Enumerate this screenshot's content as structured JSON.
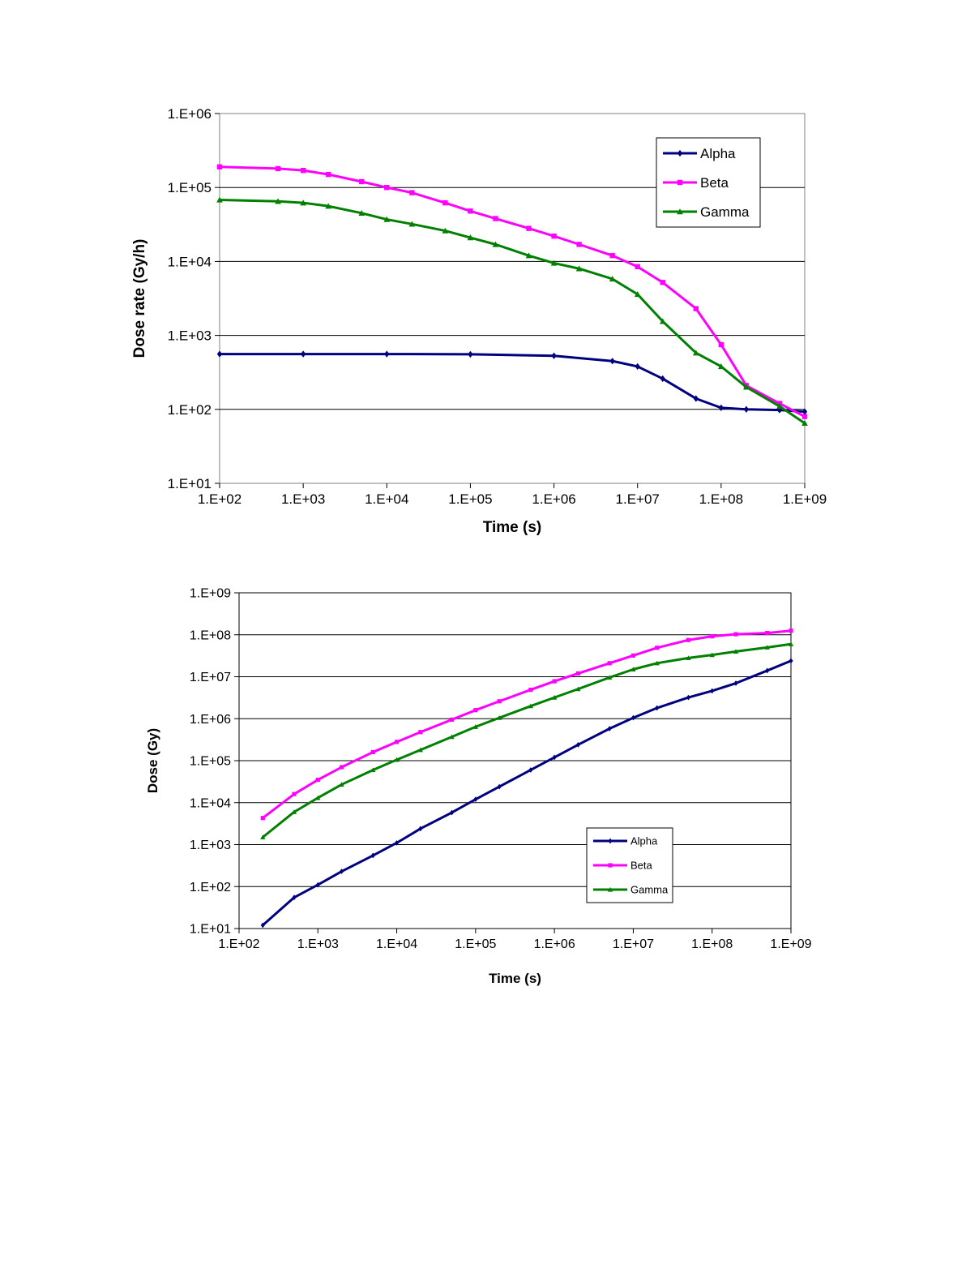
{
  "chart_data": [
    {
      "type": "line",
      "xscale": "log",
      "yscale": "log",
      "xlabel": "Time (s)",
      "ylabel": "Dose rate (Gy/h)",
      "xlim": [
        100,
        1000000000
      ],
      "ylim": [
        10,
        1000000
      ],
      "xticks": [
        "1.E+02",
        "1.E+03",
        "1.E+04",
        "1.E+05",
        "1.E+06",
        "1.E+07",
        "1.E+08",
        "1.E+09"
      ],
      "yticks": [
        "1.E+01",
        "1.E+02",
        "1.E+03",
        "1.E+04",
        "1.E+05",
        "1.E+06"
      ],
      "grid": "horizontal",
      "legend": "top-right",
      "series": [
        {
          "name": "Alpha",
          "color": "#000080",
          "marker": "diamond",
          "points": [
            [
              100,
              560
            ],
            [
              1000,
              560
            ],
            [
              10000,
              560
            ],
            [
              100000,
              555
            ],
            [
              1000000,
              530
            ],
            [
              5000000,
              450
            ],
            [
              10000000,
              380
            ],
            [
              20000000,
              260
            ],
            [
              50000000,
              140
            ],
            [
              100000000,
              105
            ],
            [
              200000000,
              100
            ],
            [
              500000000,
              98
            ],
            [
              1000000000,
              93
            ]
          ]
        },
        {
          "name": "Beta",
          "color": "#ff00ff",
          "marker": "square",
          "points": [
            [
              100,
              190000
            ],
            [
              500,
              180000
            ],
            [
              1000,
              170000
            ],
            [
              2000,
              150000
            ],
            [
              5000,
              120000
            ],
            [
              10000,
              100000
            ],
            [
              20000,
              85000
            ],
            [
              50000,
              62000
            ],
            [
              100000,
              48000
            ],
            [
              200000,
              38000
            ],
            [
              500000,
              28000
            ],
            [
              1000000,
              22000
            ],
            [
              2000000,
              17000
            ],
            [
              5000000,
              12000
            ],
            [
              10000000,
              8500
            ],
            [
              20000000,
              5200
            ],
            [
              50000000,
              2300
            ],
            [
              100000000,
              750
            ],
            [
              200000000,
              210
            ],
            [
              500000000,
              120
            ],
            [
              1000000000,
              80
            ]
          ]
        },
        {
          "name": "Gamma",
          "color": "#008000",
          "marker": "triangle",
          "points": [
            [
              100,
              68000
            ],
            [
              500,
              65000
            ],
            [
              1000,
              62000
            ],
            [
              2000,
              56000
            ],
            [
              5000,
              45000
            ],
            [
              10000,
              37000
            ],
            [
              20000,
              32000
            ],
            [
              50000,
              26000
            ],
            [
              100000,
              21000
            ],
            [
              200000,
              17000
            ],
            [
              500000,
              12000
            ],
            [
              1000000,
              9500
            ],
            [
              2000000,
              8000
            ],
            [
              5000000,
              5800
            ],
            [
              10000000,
              3600
            ],
            [
              20000000,
              1550
            ],
            [
              50000000,
              580
            ],
            [
              100000000,
              380
            ],
            [
              200000000,
              200
            ],
            [
              500000000,
              110
            ],
            [
              1000000000,
              65
            ]
          ]
        }
      ]
    },
    {
      "type": "line",
      "xscale": "log",
      "yscale": "log",
      "xlabel": "Time (s)",
      "ylabel": "Dose (Gy)",
      "xlim": [
        100,
        1000000000
      ],
      "ylim": [
        10,
        1000000000
      ],
      "xticks": [
        "1.E+02",
        "1.E+03",
        "1.E+04",
        "1.E+05",
        "1.E+06",
        "1.E+07",
        "1.E+08",
        "1.E+09"
      ],
      "yticks": [
        "1.E+01",
        "1.E+02",
        "1.E+03",
        "1.E+04",
        "1.E+05",
        "1.E+06",
        "1.E+07",
        "1.E+08",
        "1.E+09"
      ],
      "grid": "horizontal",
      "legend": "bottom-right",
      "series": [
        {
          "name": "Alpha",
          "color": "#000080",
          "marker": "diamond",
          "points": [
            [
              200,
              12
            ],
            [
              500,
              55
            ],
            [
              1000,
              110
            ],
            [
              2000,
              230
            ],
            [
              5000,
              550
            ],
            [
              10000,
              1100
            ],
            [
              20000,
              2400
            ],
            [
              50000,
              5800
            ],
            [
              100000,
              12000
            ],
            [
              200000,
              24000
            ],
            [
              500000,
              60000
            ],
            [
              1000000,
              120000
            ],
            [
              2000000,
              240000
            ],
            [
              5000000,
              580000
            ],
            [
              10000000,
              1050000
            ],
            [
              20000000,
              1800000
            ],
            [
              50000000,
              3200000
            ],
            [
              100000000,
              4600000
            ],
            [
              200000000,
              7000000
            ],
            [
              500000000,
              14000000
            ],
            [
              1000000000,
              24000000
            ]
          ]
        },
        {
          "name": "Beta",
          "color": "#ff00ff",
          "marker": "square",
          "points": [
            [
              200,
              4300
            ],
            [
              500,
              16000
            ],
            [
              1000,
              35000
            ],
            [
              2000,
              70000
            ],
            [
              5000,
              160000
            ],
            [
              10000,
              280000
            ],
            [
              20000,
              480000
            ],
            [
              50000,
              950000
            ],
            [
              100000,
              1600000
            ],
            [
              200000,
              2600000
            ],
            [
              500000,
              4900000
            ],
            [
              1000000,
              7800000
            ],
            [
              2000000,
              12000000
            ],
            [
              5000000,
              21000000
            ],
            [
              10000000,
              32000000
            ],
            [
              20000000,
              49000000
            ],
            [
              50000000,
              75000000
            ],
            [
              100000000,
              92000000
            ],
            [
              200000000,
              103000000
            ],
            [
              500000000,
              110000000
            ],
            [
              1000000000,
              125000000
            ]
          ]
        },
        {
          "name": "Gamma",
          "color": "#008000",
          "marker": "triangle",
          "points": [
            [
              200,
              1500
            ],
            [
              500,
              6000
            ],
            [
              1000,
              13000
            ],
            [
              2000,
              27000
            ],
            [
              5000,
              60000
            ],
            [
              10000,
              105000
            ],
            [
              20000,
              180000
            ],
            [
              50000,
              370000
            ],
            [
              100000,
              640000
            ],
            [
              200000,
              1050000
            ],
            [
              500000,
              2000000
            ],
            [
              1000000,
              3200000
            ],
            [
              2000000,
              5100000
            ],
            [
              5000000,
              9600000
            ],
            [
              10000000,
              15000000
            ],
            [
              20000000,
              21000000
            ],
            [
              50000000,
              28000000
            ],
            [
              100000000,
              33000000
            ],
            [
              200000000,
              40000000
            ],
            [
              500000000,
              50000000
            ],
            [
              1000000000,
              60000000
            ]
          ]
        }
      ]
    }
  ]
}
